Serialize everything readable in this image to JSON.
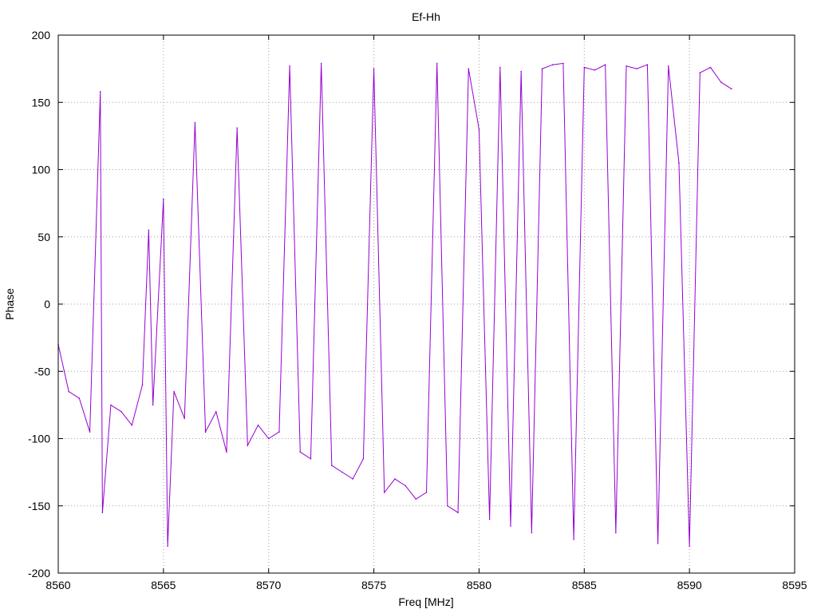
{
  "chart_data": {
    "type": "line",
    "title": "Ef-Hh",
    "xlabel": "Freq [MHz]",
    "ylabel": "Phase",
    "xlim": [
      8560,
      8595
    ],
    "ylim": [
      -200,
      200
    ],
    "xticks": [
      8560,
      8565,
      8570,
      8575,
      8580,
      8585,
      8590,
      8595
    ],
    "yticks": [
      200,
      150,
      100,
      50,
      0,
      -50,
      -100,
      -150,
      -200
    ],
    "grid": true,
    "line_color": "#9400d3",
    "series": [
      {
        "x": [
          8560,
          8560.5,
          8561,
          8561.5,
          8562,
          8562.1,
          8562.5,
          8563,
          8563.5,
          8564,
          8564.3,
          8564.5,
          8565,
          8565.2,
          8565.5,
          8566,
          8566.5,
          8567,
          8567.5,
          8568,
          8568.5,
          8569,
          8569.5,
          8570,
          8570.5,
          8571,
          8571.5,
          8572,
          8572.5,
          8573,
          8573.5,
          8574,
          8574.5,
          8575,
          8575.5,
          8576,
          8576.5,
          8577,
          8577.5,
          8578,
          8578.5,
          8579,
          8579.5,
          8580,
          8580.5,
          8581,
          8581.5,
          8582,
          8582.5,
          8583,
          8583.5,
          8584,
          8584.5,
          8585,
          8585.5,
          8586,
          8586.5,
          8587,
          8587.5,
          8588,
          8588.5,
          8589,
          8589.5,
          8590,
          8590.5,
          8591,
          8591.5,
          8592
        ],
        "y": [
          -30,
          -65,
          -70,
          -95,
          158,
          -155,
          -75,
          -80,
          -90,
          -60,
          55,
          -75,
          78,
          -180,
          -65,
          -85,
          135,
          -95,
          -80,
          -110,
          131,
          -105,
          -90,
          -100,
          -95,
          177,
          -110,
          -115,
          179,
          -120,
          -125,
          -130,
          -115,
          175,
          -140,
          -130,
          -135,
          -145,
          -140,
          179,
          -150,
          -155,
          175,
          130,
          -160,
          176,
          -165,
          173,
          -170,
          175,
          178,
          179,
          -175,
          176,
          174,
          178,
          -170,
          177,
          175,
          178,
          -178,
          177,
          105,
          -180,
          172,
          176,
          165,
          160
        ]
      }
    ]
  }
}
